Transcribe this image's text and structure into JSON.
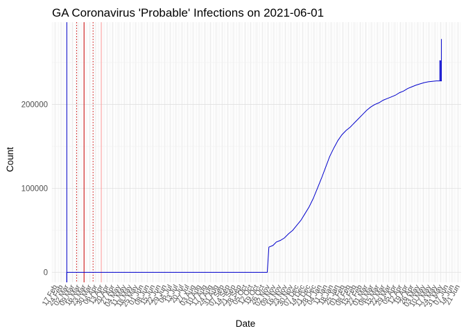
{
  "chart_data": {
    "type": "line",
    "title": "GA Coronavirus 'Probable' Infections on 2021-06-01",
    "xlabel": "Date",
    "ylabel": "Count",
    "x_range": [
      "2020-02-13",
      "2021-06-25"
    ],
    "ylim": [
      -12000,
      298000
    ],
    "y_ticks": [
      0,
      100000,
      200000
    ],
    "y_tick_labels": [
      "0",
      "100000",
      "200000"
    ],
    "grid": true,
    "x_tick_labels": [
      "17 Feb",
      "24 Feb",
      "02 Mar",
      "09 Mar",
      "16 Mar",
      "23 Mar",
      "30 Mar",
      "06 Apr",
      "13 Apr",
      "20 Apr",
      "27 Apr",
      "04 May",
      "11 May",
      "18 May",
      "25 May",
      "01 Jun",
      "08 Jun",
      "15 Jun",
      "22 Jun",
      "29 Jun",
      "06 Jul",
      "13 Jul",
      "20 Jul",
      "27 Jul",
      "03 Aug",
      "10 Aug",
      "17 Aug",
      "24 Aug",
      "31 Aug",
      "07 Sep",
      "14 Sep",
      "21 Sep",
      "28 Sep",
      "05 Oct",
      "12 Oct",
      "19 Oct",
      "26 Oct",
      "02 Nov",
      "09 Nov",
      "16 Nov",
      "23 Nov",
      "30 Nov",
      "07 Dec",
      "14 Dec",
      "21 Dec",
      "28 Dec",
      "04 Jan",
      "11 Jan",
      "18 Jan",
      "25 Jan",
      "01 Feb",
      "08 Feb",
      "15 Feb",
      "22 Feb",
      "01 Mar",
      "08 Mar",
      "15 Mar",
      "22 Mar",
      "29 Mar",
      "05 Apr",
      "12 Apr",
      "19 Apr",
      "26 Apr",
      "03 May",
      "10 May",
      "17 May",
      "24 May",
      "31 May",
      "07 Jun",
      "14 Jun",
      "21 Jun"
    ],
    "x_tick_start": "2020-02-17",
    "x_tick_step_days": 7,
    "series": [
      {
        "name": "",
        "color": "#0000cc",
        "points": [
          [
            "2020-03-02",
            0
          ],
          [
            "2020-11-01",
            0
          ],
          [
            "2020-11-03",
            30000
          ],
          [
            "2020-11-08",
            32000
          ],
          [
            "2020-11-12",
            36000
          ],
          [
            "2020-11-17",
            38000
          ],
          [
            "2020-11-22",
            41000
          ],
          [
            "2020-11-27",
            46000
          ],
          [
            "2020-12-02",
            50000
          ],
          [
            "2020-12-07",
            56000
          ],
          [
            "2020-12-12",
            62000
          ],
          [
            "2020-12-17",
            70000
          ],
          [
            "2020-12-22",
            78000
          ],
          [
            "2020-12-27",
            88000
          ],
          [
            "2021-01-01",
            100000
          ],
          [
            "2021-01-06",
            112000
          ],
          [
            "2021-01-11",
            125000
          ],
          [
            "2021-01-16",
            138000
          ],
          [
            "2021-01-21",
            148000
          ],
          [
            "2021-01-26",
            157000
          ],
          [
            "2021-01-31",
            164000
          ],
          [
            "2021-02-05",
            169000
          ],
          [
            "2021-02-10",
            173000
          ],
          [
            "2021-02-15",
            178000
          ],
          [
            "2021-02-20",
            183000
          ],
          [
            "2021-02-25",
            188000
          ],
          [
            "2021-03-02",
            193000
          ],
          [
            "2021-03-07",
            197000
          ],
          [
            "2021-03-12",
            200000
          ],
          [
            "2021-03-17",
            202000
          ],
          [
            "2021-03-22",
            205000
          ],
          [
            "2021-03-27",
            207000
          ],
          [
            "2021-04-01",
            209000
          ],
          [
            "2021-04-06",
            211000
          ],
          [
            "2021-04-11",
            214000
          ],
          [
            "2021-04-16",
            216000
          ],
          [
            "2021-04-21",
            219000
          ],
          [
            "2021-04-26",
            221000
          ],
          [
            "2021-05-01",
            223000
          ],
          [
            "2021-05-06",
            224500
          ],
          [
            "2021-05-11",
            226000
          ],
          [
            "2021-05-16",
            227000
          ],
          [
            "2021-05-21",
            227500
          ],
          [
            "2021-05-26",
            228000
          ],
          [
            "2021-05-30",
            228000
          ],
          [
            "2021-05-30",
            252000
          ],
          [
            "2021-05-31",
            252000
          ],
          [
            "2021-05-31",
            228000
          ],
          [
            "2021-06-01",
            228000
          ],
          [
            "2021-06-01",
            278000
          ]
        ]
      }
    ],
    "reference_lines": [
      {
        "x": "2020-03-02",
        "color": "#0000cc",
        "style": "solid"
      },
      {
        "x": "2020-03-14",
        "color": "#cc0000",
        "style": "dotted"
      },
      {
        "x": "2020-03-23",
        "color": "#cc0000",
        "style": "solid"
      },
      {
        "x": "2020-04-03",
        "color": "#cc0000",
        "style": "dotted"
      },
      {
        "x": "2020-04-13",
        "color": "#ff9999",
        "style": "solid"
      }
    ]
  }
}
